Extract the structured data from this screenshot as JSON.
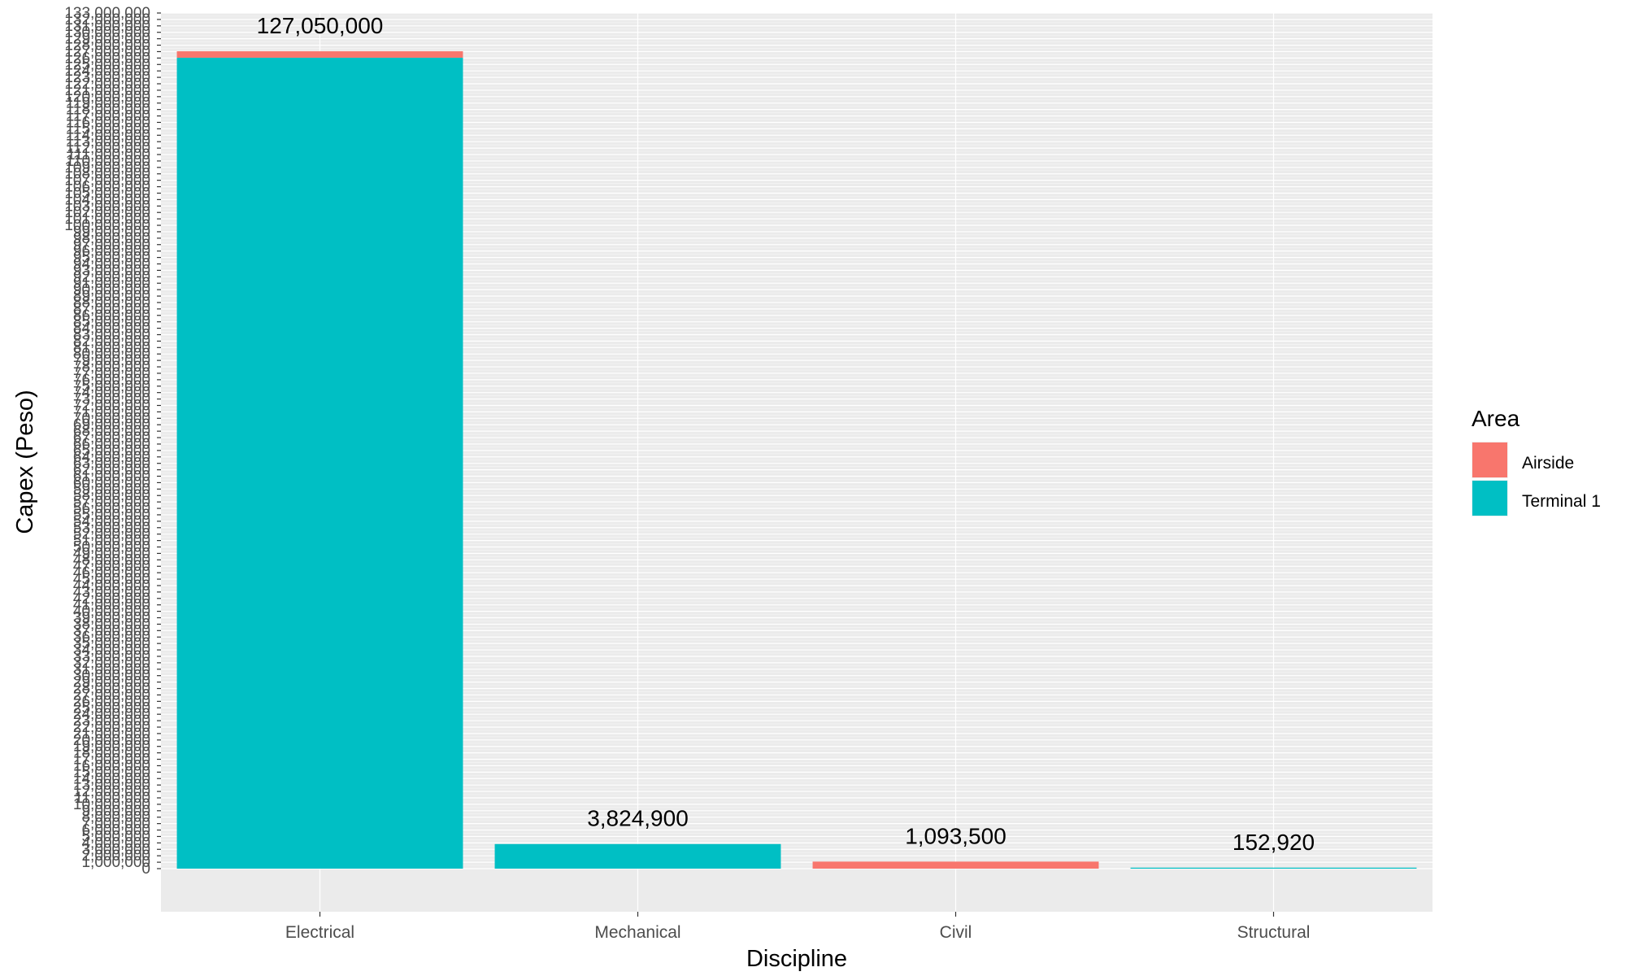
{
  "chart_data": {
    "type": "bar",
    "stacked": true,
    "title": "",
    "xlabel": "Discipline",
    "ylabel": "Capex (Peso)",
    "ylim": [
      0,
      133000000
    ],
    "y_tick_step": 1000000,
    "y_tick_label_first_nonzero": "1,000,000",
    "grid": true,
    "legend_position": "right",
    "categories": [
      "Electrical",
      "Mechanical",
      "Civil",
      "Structural"
    ],
    "series": [
      {
        "name": "Airside",
        "color": "#F8766D",
        "values": [
          1000000,
          0,
          1093500,
          0
        ]
      },
      {
        "name": "Terminal 1",
        "color": "#00BFC4",
        "values": [
          126050000,
          3824900,
          0,
          152920
        ]
      }
    ],
    "totals": [
      127050000,
      3824900,
      1093500,
      152920
    ],
    "total_labels": [
      "127,050,000",
      "3,824,900",
      "1,093,500",
      "152,920"
    ]
  },
  "legend": {
    "title": "Area",
    "items": [
      {
        "label": "Airside",
        "color": "#F8766D"
      },
      {
        "label": "Terminal 1",
        "color": "#00BFC4"
      }
    ]
  },
  "colors": {
    "panel_background": "#EBEBEB",
    "major_grid": "#FFFFFF",
    "minor_grid": "#F4F4F4",
    "tick_text": "#4D4D4D"
  }
}
